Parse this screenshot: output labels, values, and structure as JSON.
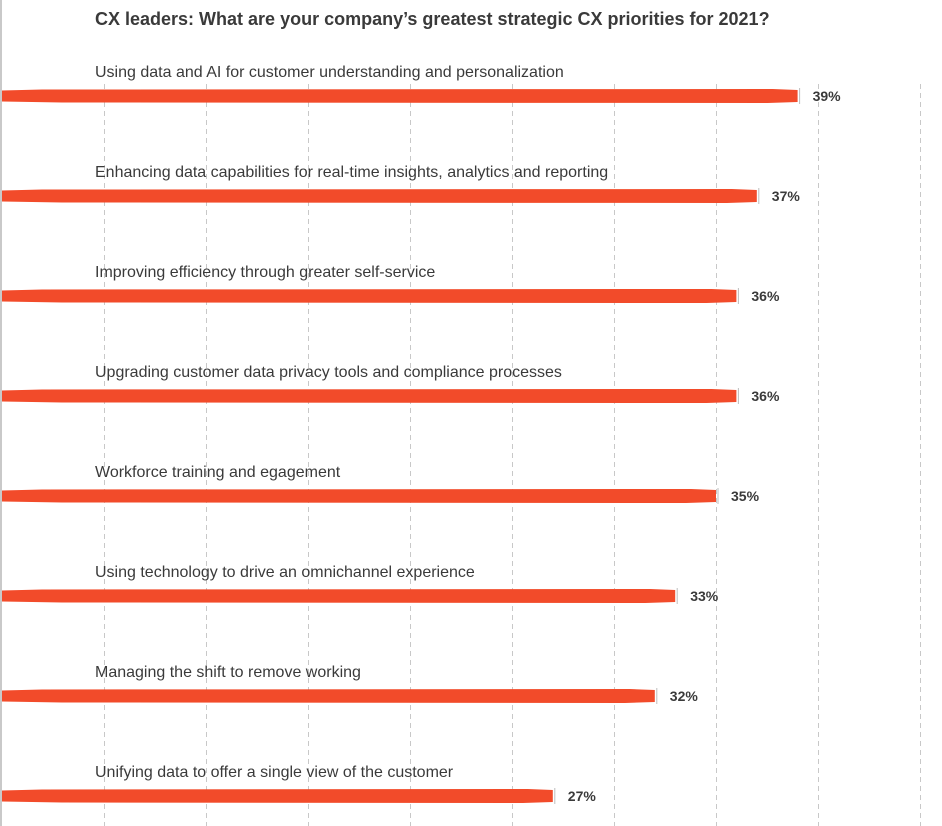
{
  "chart_data": {
    "type": "bar",
    "orientation": "horizontal",
    "title": "CX leaders: What are your company’s greatest strategic CX priorities for 2021?",
    "categories": [
      "Using data and AI for customer understanding and personalization",
      "Enhancing data capabilities for real-time insights, analytics and reporting",
      "Improving efficiency through greater self-service",
      "Upgrading customer data privacy tools and compliance processes",
      "Workforce training and egagement",
      "Using technology to drive an omnichannel experience",
      "Managing the shift to remove working",
      "Unifying data to offer a single view of the customer"
    ],
    "values": [
      39,
      37,
      36,
      36,
      35,
      33,
      32,
      27
    ],
    "value_labels": [
      "39%",
      "37%",
      "36%",
      "36%",
      "35%",
      "33%",
      "32%",
      "27%"
    ],
    "xlim": [
      0,
      45
    ],
    "grid": "vertical dashed",
    "legend": "none",
    "colors": {
      "bar": "#f24b2a",
      "text": "#3a3a3a",
      "grid": "#c8c8c8"
    }
  }
}
